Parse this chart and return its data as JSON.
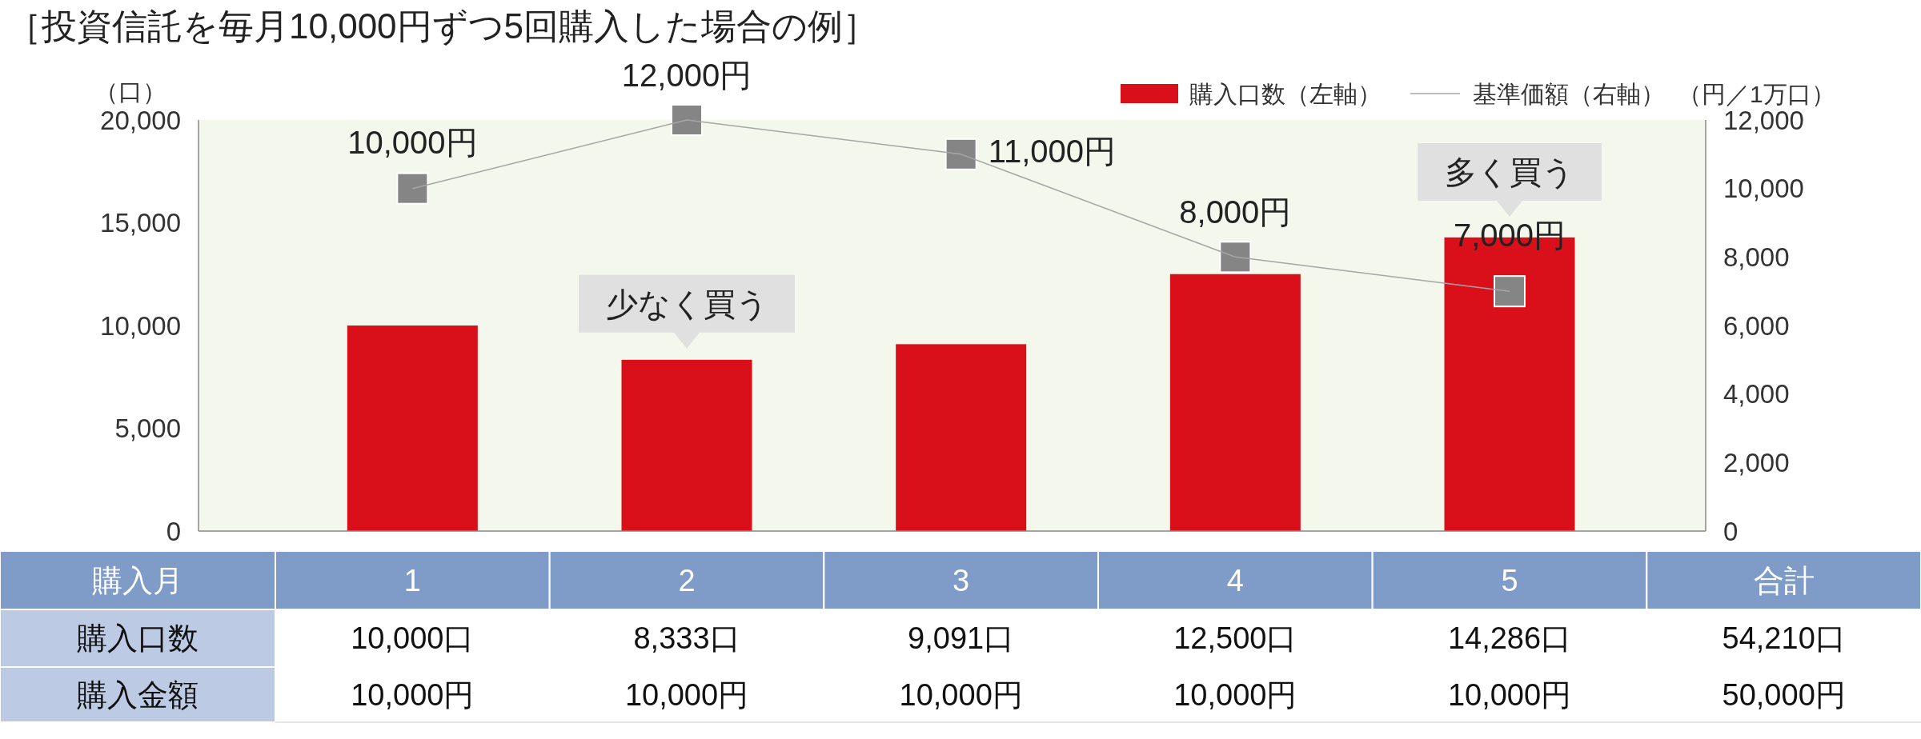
{
  "chart_data": {
    "type": "bar",
    "title": "［投資信託を毎月10,000円ずつ5回購入した場合の例］",
    "categories": [
      "1",
      "2",
      "3",
      "4",
      "5"
    ],
    "series": [
      {
        "name": "購入口数（左軸）",
        "color": "#d90f1a",
        "values": [
          10000,
          8333,
          9091,
          12500,
          14286
        ],
        "value_labels": [
          "10,000口",
          "8,333口",
          "9,091口",
          "12,500口",
          "14,286口"
        ]
      },
      {
        "type": "line",
        "name": "基準価額（右軸）",
        "color": "#a6a6a6",
        "colors": [
          "#858585",
          "#858585",
          "#858585",
          "#858585",
          "#858585"
        ],
        "axis": "y2",
        "marker": "square",
        "values": [
          10000,
          12000,
          11000,
          8000,
          7000
        ],
        "value_labels": [
          "10,000円",
          "12,000円",
          "11,000円",
          "8,000円",
          "7,000円"
        ]
      }
    ],
    "ylabel": "（口）",
    "y2label": "（円／1万口）",
    "ylim": [
      0,
      20000
    ],
    "yticks": [
      0,
      {
        "value": 5000,
        "label": "5,000"
      },
      {
        "value": 10000,
        "label": "10,000"
      },
      {
        "value": 15000,
        "label": "15,000"
      },
      {
        "value": 20000,
        "label": "20,000"
      }
    ],
    "y2lim": [
      0,
      12000
    ],
    "y2ticks": [
      0,
      {
        "value": 2000,
        "label": "2,000"
      },
      {
        "value": 4000,
        "label": "4,000"
      },
      {
        "value": 6000,
        "label": "6,000"
      },
      {
        "value": 8000,
        "label": "8,000"
      },
      {
        "value": 10000,
        "label": "10,000"
      },
      {
        "value": 12000,
        "label": "12,000"
      }
    ],
    "legend": "top right",
    "annotations": [
      {
        "text": "少なく買う",
        "x": "2",
        "y": 8333
      },
      "多く買う",
      "購入月",
      "合計",
      "購入口数",
      "54,210口",
      "購入金額",
      "10,000円",
      "10,000円",
      "10,000円",
      "10,000円",
      "10,000円",
      "50,000円"
    ]
  }
}
